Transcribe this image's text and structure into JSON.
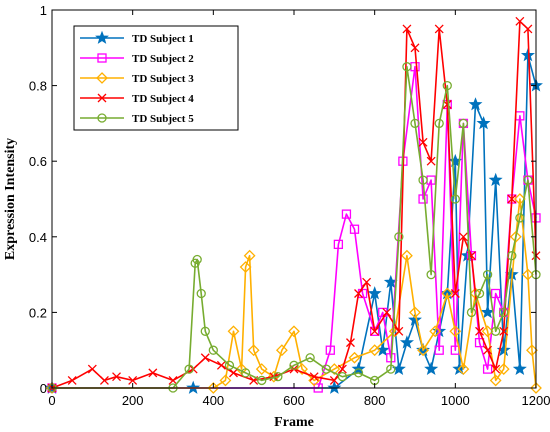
{
  "chart_data": {
    "type": "line",
    "xlabel": "Frame",
    "ylabel": "Expression Intensity",
    "xlim": [
      0,
      1200
    ],
    "ylim": [
      0,
      1
    ],
    "x_ticks": [
      "0",
      "200",
      "400",
      "600",
      "800",
      "1000",
      "1200"
    ],
    "y_ticks": [
      "0",
      "0.2",
      "0.4",
      "0.6",
      "0.8",
      "1"
    ],
    "legend_position": "top-left",
    "grid": false,
    "series": [
      {
        "name": "TD Subject 1",
        "color": "#0072BD",
        "marker": "star",
        "x": [
          0,
          350,
          700,
          760,
          800,
          820,
          840,
          860,
          880,
          900,
          920,
          940,
          960,
          980,
          1000,
          1010,
          1030,
          1050,
          1070,
          1080,
          1100,
          1120,
          1140,
          1160,
          1180,
          1200
        ],
        "y": [
          0,
          0,
          0,
          0.05,
          0.25,
          0.1,
          0.28,
          0.05,
          0.12,
          0.18,
          0.1,
          0.05,
          0.15,
          0.25,
          0.6,
          0.05,
          0.35,
          0.75,
          0.7,
          0.2,
          0.55,
          0.1,
          0.3,
          0.05,
          0.88,
          0.8
        ]
      },
      {
        "name": "TD Subject 2",
        "color": "#FF00FF",
        "marker": "square",
        "x": [
          0,
          660,
          690,
          710,
          730,
          750,
          770,
          800,
          820,
          840,
          870,
          900,
          920,
          940,
          960,
          980,
          1000,
          1020,
          1040,
          1060,
          1080,
          1100,
          1120,
          1140,
          1160,
          1180,
          1200
        ],
        "y": [
          0,
          0,
          0.1,
          0.38,
          0.46,
          0.42,
          0.25,
          0.15,
          0.2,
          0.08,
          0.6,
          0.85,
          0.5,
          0.55,
          0.1,
          0.75,
          0.1,
          0.7,
          0.35,
          0.12,
          0.05,
          0.25,
          0.2,
          0.5,
          0.72,
          0.55,
          0.45
        ]
      },
      {
        "name": "TD Subject 3",
        "color": "#FFB000",
        "marker": "diamond",
        "x": [
          0,
          400,
          430,
          450,
          470,
          480,
          490,
          500,
          520,
          550,
          570,
          600,
          620,
          650,
          700,
          750,
          800,
          850,
          880,
          900,
          920,
          950,
          980,
          1000,
          1020,
          1050,
          1080,
          1100,
          1120,
          1150,
          1160,
          1180,
          1190,
          1200
        ],
        "y": [
          0,
          0,
          0.02,
          0.15,
          0.05,
          0.32,
          0.35,
          0.1,
          0.05,
          0.03,
          0.1,
          0.15,
          0.05,
          0.02,
          0.05,
          0.08,
          0.1,
          0.15,
          0.35,
          0.2,
          0.1,
          0.15,
          0.25,
          0.15,
          0.05,
          0.25,
          0.15,
          0.02,
          0.05,
          0.4,
          0.5,
          0.3,
          0.1,
          0
        ]
      },
      {
        "name": "TD Subject 4",
        "color": "#FF0000",
        "marker": "x",
        "x": [
          0,
          50,
          100,
          130,
          160,
          200,
          250,
          300,
          350,
          380,
          420,
          450,
          500,
          550,
          600,
          650,
          700,
          720,
          740,
          760,
          780,
          800,
          830,
          860,
          880,
          900,
          920,
          940,
          960,
          980,
          1000,
          1020,
          1040,
          1060,
          1080,
          1100,
          1120,
          1140,
          1160,
          1180,
          1200
        ],
        "y": [
          0,
          0.02,
          0.05,
          0.02,
          0.03,
          0.02,
          0.04,
          0.02,
          0.05,
          0.08,
          0.06,
          0.04,
          0.02,
          0.03,
          0.05,
          0.03,
          0.02,
          0.05,
          0.12,
          0.25,
          0.28,
          0.15,
          0.2,
          0.15,
          0.95,
          0.9,
          0.65,
          0.6,
          0.95,
          0.75,
          0.25,
          0.4,
          0.35,
          0.15,
          0.1,
          0.05,
          0.15,
          0.5,
          0.97,
          0.95,
          0.35
        ]
      },
      {
        "name": "TD Subject 5",
        "color": "#77AC30",
        "marker": "circle",
        "x": [
          0,
          300,
          340,
          355,
          360,
          370,
          380,
          400,
          440,
          480,
          520,
          560,
          600,
          640,
          680,
          720,
          760,
          800,
          840,
          860,
          880,
          900,
          920,
          940,
          960,
          980,
          1000,
          1020,
          1040,
          1060,
          1080,
          1100,
          1120,
          1140,
          1160,
          1180,
          1200
        ],
        "y": [
          0,
          0,
          0.05,
          0.33,
          0.34,
          0.25,
          0.15,
          0.1,
          0.06,
          0.04,
          0.02,
          0.03,
          0.06,
          0.08,
          0.05,
          0.03,
          0.04,
          0.02,
          0.05,
          0.4,
          0.85,
          0.7,
          0.55,
          0.3,
          0.7,
          0.8,
          0.5,
          0.7,
          0.2,
          0.25,
          0.3,
          0.15,
          0.2,
          0.35,
          0.45,
          0.55,
          0.3
        ]
      }
    ]
  }
}
